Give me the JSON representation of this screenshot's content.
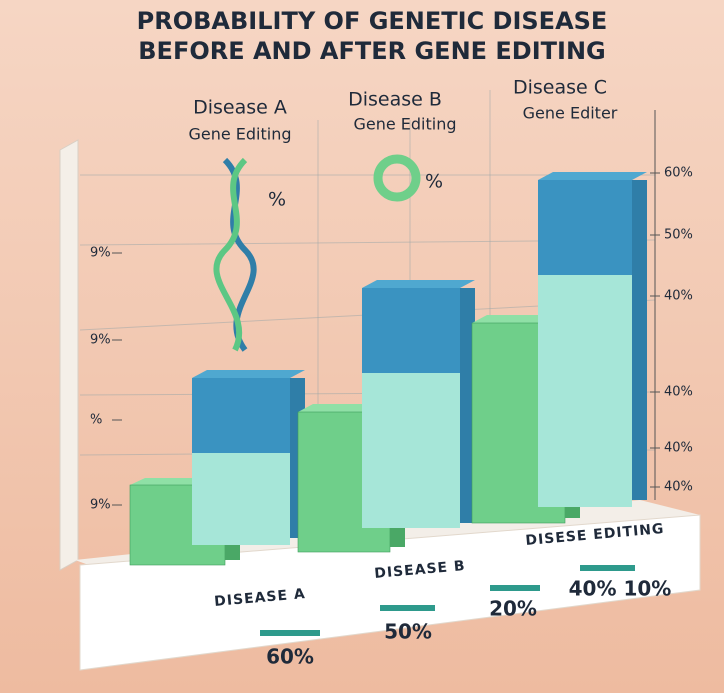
{
  "title": {
    "lines": [
      "PROBABILITY OF GENETIC DISEASE",
      "BEFORE AND AFTER GENE EDITING"
    ]
  },
  "headers": [
    {
      "name": "Disease A",
      "sub": "Gene Editing"
    },
    {
      "name": "Disease B",
      "sub": "Gene Editing"
    },
    {
      "name": "Disease C",
      "sub": "Gene Editer"
    }
  ],
  "icon_labels": [
    "%",
    "%"
  ],
  "left_axis": [
    "9%",
    "9%",
    "%",
    "9%"
  ],
  "right_axis": [
    "60%",
    "50%",
    "40%",
    "40%",
    "40%",
    "40%"
  ],
  "base_labels": [
    "DISEASE A",
    "DISEASE B",
    "DISESE EDITING"
  ],
  "base_values": [
    "60%",
    "50%",
    "20%",
    "40% 10%"
  ]
}
